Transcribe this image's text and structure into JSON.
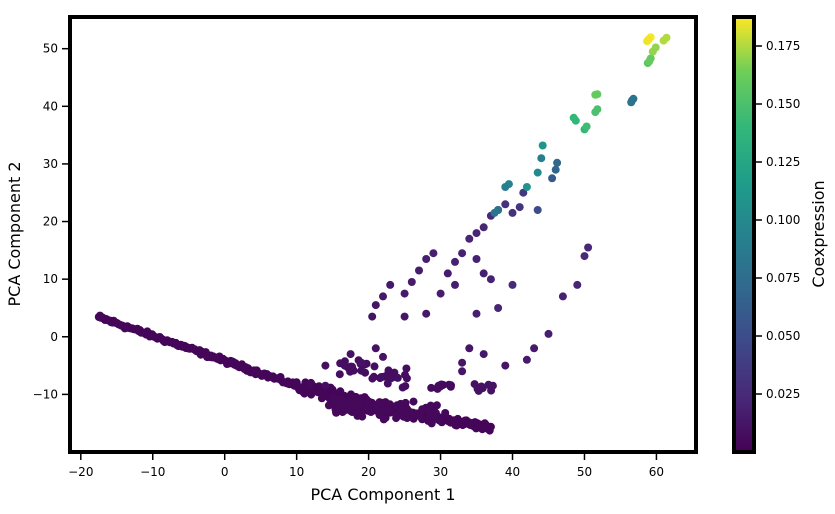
{
  "chart_data": {
    "type": "scatter",
    "xlabel": "PCA Component 1",
    "ylabel": "PCA Component 2",
    "xlim": [
      -21.5,
      65.5
    ],
    "ylim": [
      -20,
      55.5
    ],
    "xticks": [
      -20,
      -10,
      0,
      10,
      20,
      30,
      40,
      50,
      60
    ],
    "yticks": [
      -10,
      0,
      10,
      20,
      30,
      40,
      50
    ],
    "grid": false,
    "colorbar": {
      "label": "Coexpression",
      "colormap": "viridis",
      "range": [
        0.0,
        0.1875
      ],
      "ticks": [
        0.025,
        0.05,
        0.075,
        0.1,
        0.125,
        0.15,
        0.175
      ],
      "tick_labels": [
        "0.025",
        "0.050",
        "0.075",
        "0.100",
        "0.125",
        "0.150",
        "0.175"
      ]
    },
    "marker_color_low": "#440154",
    "marker_color_high": "#fde725",
    "curves": [
      {
        "from": [
          -17.5,
          3.4
        ],
        "to": [
          10,
          -8.5
        ],
        "c": 0.003,
        "n": 160,
        "jitter": 0.35
      },
      {
        "from": [
          10,
          -8.5
        ],
        "to": [
          22,
          -12.5
        ],
        "c": 0.003,
        "n": 90,
        "jitter": 0.9
      },
      {
        "from": [
          15,
          -11
        ],
        "to": [
          37,
          -15.8
        ],
        "c": 0.003,
        "n": 130,
        "jitter": 0.6
      }
    ],
    "clusters": [
      {
        "x": 17,
        "y": -12,
        "c": 0.004,
        "n": 40,
        "spread": 2.5
      },
      {
        "x": 22,
        "y": -12.5,
        "c": 0.004,
        "n": 60,
        "spread": 3.0
      },
      {
        "x": 28,
        "y": -13.5,
        "c": 0.004,
        "n": 40,
        "spread": 2.5
      },
      {
        "x": 18,
        "y": -5,
        "c": 0.008,
        "n": 15,
        "spread": 2.0
      },
      {
        "x": 23,
        "y": -7,
        "c": 0.008,
        "n": 20,
        "spread": 2.5
      },
      {
        "x": 30,
        "y": -8.5,
        "c": 0.006,
        "n": 12,
        "spread": 1.5
      },
      {
        "x": 36,
        "y": -9,
        "c": 0.01,
        "n": 8,
        "spread": 1.5
      }
    ],
    "points": [
      [
        -17.2,
        3.3,
        0.003
      ],
      [
        12,
        -8,
        0.004
      ],
      [
        15,
        -10.5,
        0.004
      ],
      [
        14,
        -5,
        0.008
      ],
      [
        16,
        -6.5,
        0.008
      ],
      [
        14,
        -8.5,
        0.008
      ],
      [
        17.5,
        -3,
        0.01
      ],
      [
        19,
        -4.5,
        0.01
      ],
      [
        21,
        -2,
        0.01
      ],
      [
        22,
        -3.5,
        0.01
      ],
      [
        20.5,
        3.5,
        0.01
      ],
      [
        21,
        5.5,
        0.012
      ],
      [
        22,
        7,
        0.014
      ],
      [
        23,
        9,
        0.014
      ],
      [
        25,
        7.5,
        0.015
      ],
      [
        26,
        9.5,
        0.016
      ],
      [
        27,
        11.5,
        0.016
      ],
      [
        28,
        13.5,
        0.018
      ],
      [
        29,
        14.5,
        0.018
      ],
      [
        25,
        3.5,
        0.012
      ],
      [
        28,
        4,
        0.014
      ],
      [
        31,
        11,
        0.016
      ],
      [
        32,
        13,
        0.02
      ],
      [
        33,
        14.5,
        0.02
      ],
      [
        34,
        17,
        0.022
      ],
      [
        35,
        18,
        0.022
      ],
      [
        35,
        13.5,
        0.02
      ],
      [
        36,
        19,
        0.022
      ],
      [
        37,
        21,
        0.025
      ],
      [
        38,
        22,
        0.028
      ],
      [
        39,
        23,
        0.03
      ],
      [
        40,
        21.5,
        0.03
      ],
      [
        41,
        22.5,
        0.032
      ],
      [
        41.5,
        25,
        0.035
      ],
      [
        36,
        11,
        0.018
      ],
      [
        37,
        10,
        0.02
      ],
      [
        38,
        5,
        0.022
      ],
      [
        40,
        9,
        0.025
      ],
      [
        30,
        7.5,
        0.016
      ],
      [
        32,
        9,
        0.018
      ],
      [
        33,
        -4.5,
        0.012
      ],
      [
        36,
        -3,
        0.014
      ],
      [
        34,
        -2,
        0.012
      ],
      [
        35,
        4,
        0.018
      ],
      [
        33,
        -6,
        0.012
      ],
      [
        39,
        -5,
        0.012
      ],
      [
        42,
        -4,
        0.015
      ],
      [
        43,
        -2,
        0.015
      ],
      [
        45,
        0.5,
        0.018
      ],
      [
        47,
        7,
        0.02
      ],
      [
        49,
        9,
        0.022
      ],
      [
        50,
        14,
        0.024
      ],
      [
        50.5,
        15.5,
        0.024
      ],
      [
        43.5,
        22,
        0.05
      ],
      [
        45.5,
        27.5,
        0.06
      ],
      [
        46,
        29,
        0.068
      ],
      [
        46.2,
        30.2,
        0.07
      ],
      [
        44,
        31,
        0.09
      ],
      [
        44.2,
        33.2,
        0.11
      ],
      [
        43.5,
        28.5,
        0.1
      ],
      [
        42,
        26,
        0.11
      ],
      [
        39.5,
        26.5,
        0.095
      ],
      [
        39,
        26,
        0.09
      ],
      [
        38,
        22,
        0.08
      ],
      [
        37.5,
        21.5,
        0.08
      ],
      [
        48.5,
        38,
        0.14
      ],
      [
        48.8,
        37.5,
        0.14
      ],
      [
        50,
        36,
        0.14
      ],
      [
        50.3,
        36.5,
        0.145
      ],
      [
        51.5,
        39,
        0.15
      ],
      [
        51.8,
        39.5,
        0.15
      ],
      [
        51.5,
        42,
        0.16
      ],
      [
        51.8,
        42.1,
        0.16
      ],
      [
        56.5,
        40.7,
        0.08
      ],
      [
        56.8,
        41.3,
        0.08
      ],
      [
        56.6,
        41.0,
        0.08
      ],
      [
        58.8,
        47.5,
        0.155
      ],
      [
        59.2,
        48.3,
        0.16
      ],
      [
        59.0,
        47.8,
        0.16
      ],
      [
        59.5,
        49.5,
        0.17
      ],
      [
        59.9,
        50.2,
        0.17
      ],
      [
        61.0,
        51.4,
        0.175
      ],
      [
        61.4,
        51.9,
        0.175
      ],
      [
        58.7,
        51.3,
        0.185
      ],
      [
        59.2,
        52.0,
        0.187
      ],
      [
        58.9,
        51.6,
        0.185
      ]
    ]
  }
}
